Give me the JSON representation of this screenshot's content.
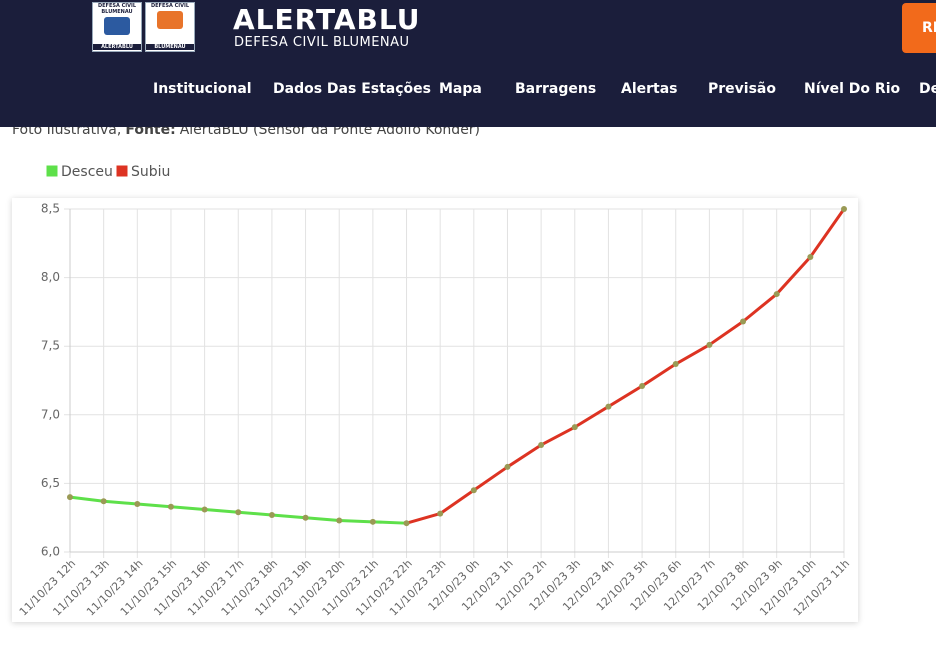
{
  "header": {
    "logos": [
      {
        "lines": [
          "DEFESA CIVIL",
          "BLUMENAU"
        ],
        "caption": "ALERTABLU"
      },
      {
        "lines": [
          "DEFESA CIVIL"
        ],
        "caption": "BLUMENAU"
      }
    ],
    "title": "ALERTABLU",
    "subtitle": "DEFESA CIVIL BLUMENAU",
    "nav": [
      "Institucional",
      "Dados Das Estações",
      "Mapa",
      "Barragens",
      "Alertas",
      "Previsão",
      "Nível Do Rio",
      "De"
    ],
    "button": "RE"
  },
  "caption": {
    "prefix": "Foto Ilustrativa,",
    "label": "Fonte:",
    "source": "AlertaBLU (Sensor da Ponte Adolfo Konder)"
  },
  "chart_data": {
    "type": "line",
    "legend": [
      {
        "name": "Desceu",
        "color": "#5ee04a"
      },
      {
        "name": "Subiu",
        "color": "#dd3322"
      }
    ],
    "point_color": "#9a9a55",
    "categories": [
      "11/10/23 12h",
      "11/10/23 13h",
      "11/10/23 14h",
      "11/10/23 15h",
      "11/10/23 16h",
      "11/10/23 17h",
      "11/10/23 18h",
      "11/10/23 19h",
      "11/10/23 20h",
      "11/10/23 21h",
      "11/10/23 22h",
      "11/10/23 23h",
      "12/10/23 0h",
      "12/10/23 1h",
      "12/10/23 2h",
      "12/10/23 3h",
      "12/10/23 4h",
      "12/10/23 5h",
      "12/10/23 6h",
      "12/10/23 7h",
      "12/10/23 8h",
      "12/10/23 9h",
      "12/10/23 10h",
      "12/10/23 11h"
    ],
    "values": [
      6.4,
      6.37,
      6.35,
      6.33,
      6.31,
      6.29,
      6.27,
      6.25,
      6.23,
      6.22,
      6.21,
      6.28,
      6.45,
      6.62,
      6.78,
      6.91,
      7.06,
      7.21,
      7.37,
      7.51,
      7.68,
      7.88,
      8.15,
      8.5
    ],
    "ylim": [
      6,
      8.5
    ],
    "yticks": [
      {
        "value": 6,
        "label": "6,0"
      },
      {
        "value": 6.5,
        "label": "6,5"
      },
      {
        "value": 7,
        "label": "7,0"
      },
      {
        "value": 7.5,
        "label": "7,5"
      },
      {
        "value": 8,
        "label": "8,0"
      },
      {
        "value": 8.5,
        "label": "8,5"
      }
    ],
    "grid": true
  }
}
